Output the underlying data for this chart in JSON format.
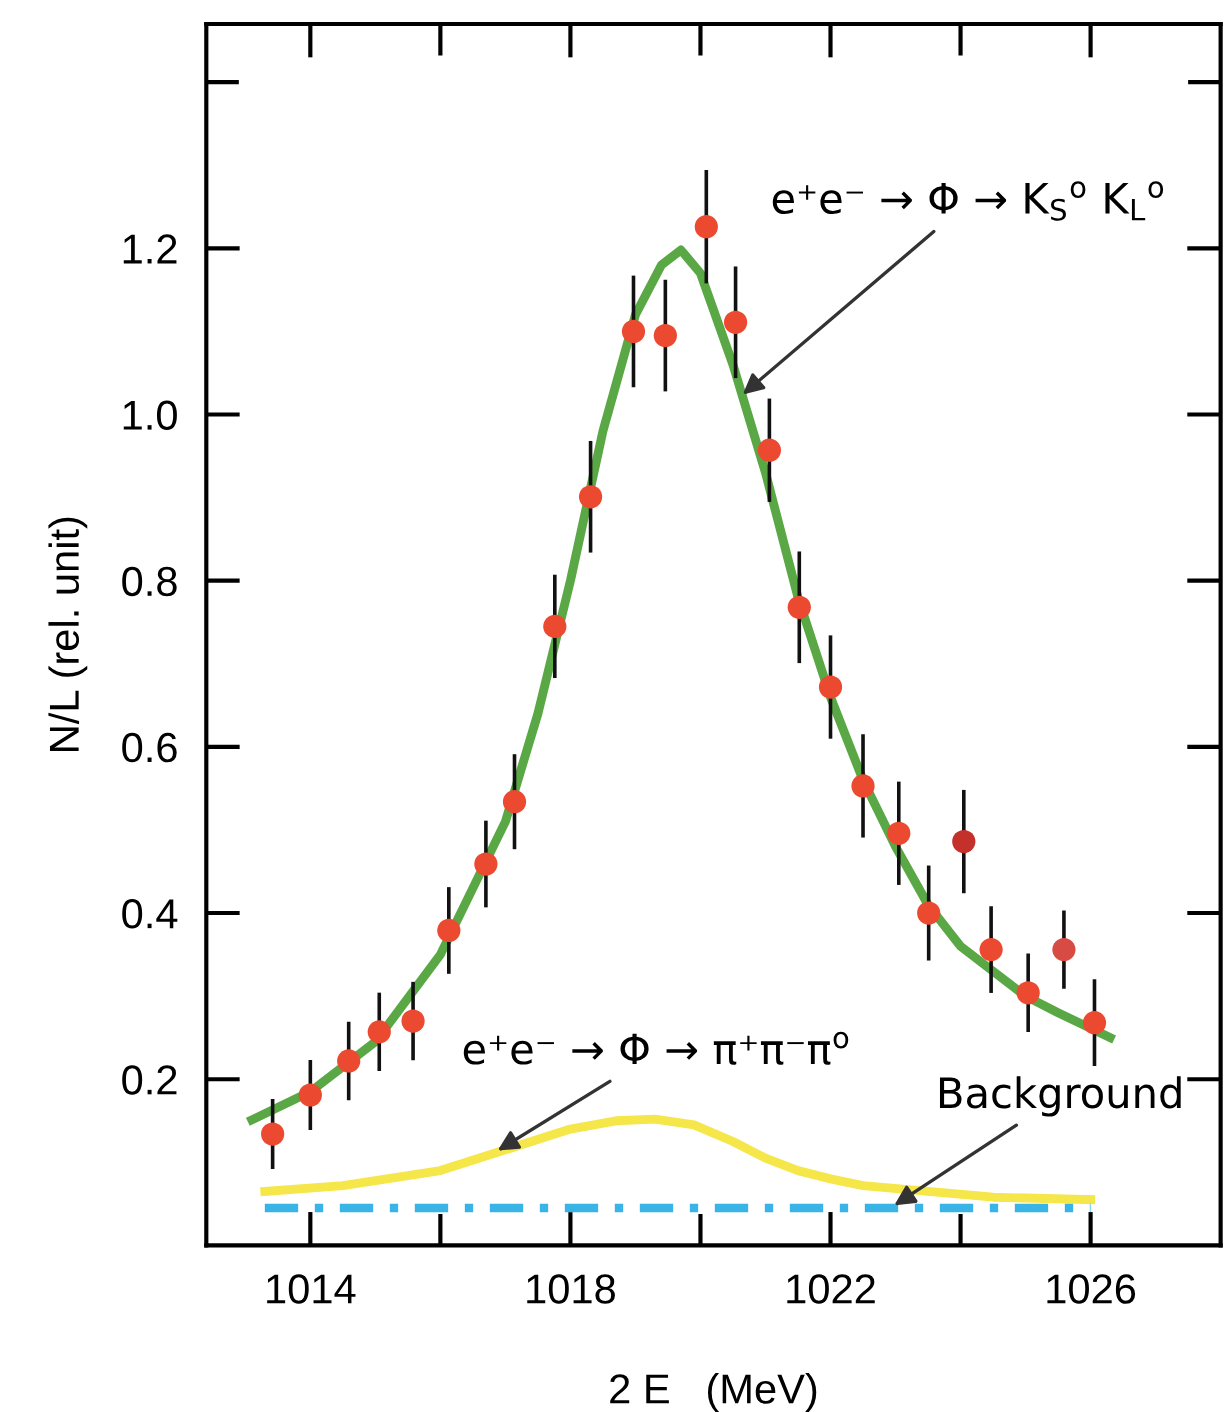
{
  "chart_data": {
    "type": "scatter",
    "xlabel": "2 E   (MeV)",
    "ylabel": "N/L (rel. unit)",
    "xlim": [
      1012.4,
      1028
    ],
    "ylim": [
      0,
      1.47
    ],
    "xticks": [
      1014,
      {
        "value": 1016,
        "label": null
      },
      1018,
      {
        "value": 1020,
        "label": null
      },
      1022,
      {
        "value": 1024,
        "label": null
      },
      1026
    ],
    "yticks": [
      0.2,
      0.4,
      0.6,
      0.8,
      {
        "value": 1.0,
        "label": "1.0"
      },
      1.2,
      {
        "value": 1.4,
        "label": null
      }
    ],
    "grid": false,
    "legend": false,
    "series": [
      {
        "type": "line",
        "color": "#f5e64a",
        "line_style": "solid",
        "marker": "none",
        "x": [
          1013.3,
          1014.5,
          1016,
          1017,
          1018,
          1018.7,
          1019.3,
          1019.9,
          1020.5,
          1021,
          1021.5,
          1022,
          1022.5,
          1023.5,
          1024.5,
          1026
        ],
        "values": [
          0.065,
          0.072,
          0.09,
          0.115,
          0.14,
          0.15,
          0.152,
          0.145,
          0.125,
          0.105,
          0.09,
          0.08,
          0.072,
          0.065,
          0.058,
          0.055
        ]
      },
      {
        "type": "line",
        "color": "#3ab4e6",
        "line_style": "dashed",
        "marker": "none",
        "x": [
          1013.3,
          1026
        ],
        "values": [
          0.045,
          0.045
        ]
      },
      {
        "type": "line",
        "color": "#5aa845",
        "line_style": "solid",
        "marker": "none",
        "x": [
          1013.1,
          1014,
          1015,
          1016,
          1017,
          1017.5,
          1018,
          1018.5,
          1019,
          1019.4,
          1019.7,
          1020,
          1020.5,
          1021,
          1021.5,
          1022,
          1022.5,
          1023,
          1023.5,
          1024,
          1024.5,
          1025,
          1025.5,
          1026.3
        ],
        "values": [
          0.151,
          0.185,
          0.245,
          0.35,
          0.51,
          0.64,
          0.8,
          0.98,
          1.12,
          1.18,
          1.198,
          1.17,
          1.06,
          0.93,
          0.78,
          0.66,
          0.56,
          0.48,
          0.41,
          0.36,
          0.33,
          0.3,
          0.28,
          0.25
        ]
      },
      {
        "type": "scatter",
        "marker": "circle",
        "color": "#ec4a30",
        "colors": [
          "#ec4a30",
          "#ec4a30",
          "#ec4a30",
          "#ec4a30",
          "#ec4a30",
          "#ec4a30",
          "#ec4a30",
          "#ec4a30",
          "#ec4a30",
          "#ec4a30",
          "#ec4a30",
          "#ec4a30",
          "#ec4a30",
          "#ec4a30",
          "#ec4a30",
          "#ec4a30",
          "#ec4a30",
          "#ec4a30",
          "#ec4a30",
          "#ec4a30",
          "#c4302a",
          "#ec4a30",
          "#ec4a30",
          "#d84a44",
          "#ec4a30"
        ],
        "x": [
          1013.42,
          1014.0,
          1014.59,
          1015.06,
          1015.58,
          1016.13,
          1016.7,
          1017.14,
          1017.76,
          1018.31,
          1018.97,
          1019.46,
          1020.09,
          1020.54,
          1021.06,
          1021.52,
          1022.0,
          1022.5,
          1023.05,
          1023.51,
          1024.05,
          1024.47,
          1025.04,
          1025.59,
          1026.06
        ],
        "values": [
          0.134,
          0.181,
          0.222,
          0.257,
          0.27,
          0.379,
          0.459,
          0.534,
          0.745,
          0.901,
          1.1,
          1.095,
          1.226,
          1.111,
          0.957,
          0.768,
          0.672,
          0.553,
          0.496,
          0.4,
          0.486,
          0.356,
          0.304,
          0.356,
          0.268
        ],
        "errors": [
          0.04,
          0.04,
          0.045,
          0.045,
          0.045,
          0.05,
          0.05,
          0.055,
          0.06,
          0.065,
          0.065,
          0.065,
          0.066,
          0.065,
          0.06,
          0.065,
          0.06,
          0.06,
          0.06,
          0.055,
          0.06,
          0.05,
          0.045,
          0.045,
          0.05
        ]
      }
    ],
    "annotations": [
      {
        "text": "e⁺e⁻ → Φ → K$_{S}$$^{o}$ K$_{L}$$^{o}$",
        "x": 1020.65,
        "y": 1.024
      },
      {
        "text": "e⁺e⁻ → Φ → π⁺π⁻π$^{o}$",
        "x": 1016.88,
        "y": 0.114
      },
      {
        "text": "Background",
        "x": 1022.98,
        "y": 0.048
      }
    ]
  }
}
